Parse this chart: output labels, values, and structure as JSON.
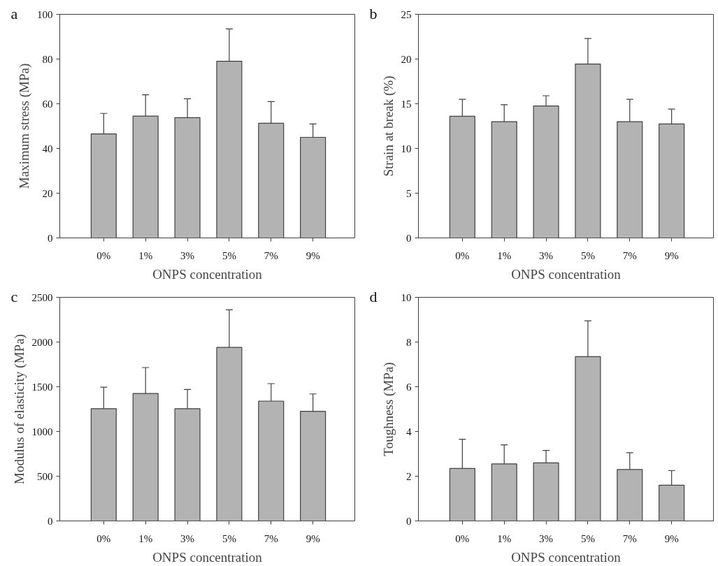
{
  "chart_data": [
    {
      "type": "bar",
      "annotations": [
        "a"
      ],
      "xlabel": "ONPS concentration",
      "ylabel": "Maximum stress (MPa)",
      "categories": [
        "0%",
        "1%",
        "3%",
        "5%",
        "7%",
        "9%"
      ],
      "values": [
        46.5,
        54.5,
        53.8,
        79,
        51.3,
        45
      ],
      "color": "#b3b3b3",
      "errors": [
        [
          46.5,
          55.7
        ],
        [
          54.5,
          64
        ],
        [
          53.8,
          62.2
        ],
        [
          79,
          93.5
        ],
        [
          51.3,
          61
        ],
        [
          45,
          51
        ]
      ],
      "ylim": [
        0,
        100
      ],
      "yticks": [
        0,
        20,
        40,
        60,
        80,
        100
      ],
      "grid": false
    },
    {
      "type": "bar",
      "annotations": [
        "b"
      ],
      "xlabel": "ONPS concentration",
      "ylabel": "Strain at break (%)",
      "categories": [
        "0%",
        "1%",
        "3%",
        "5%",
        "7%",
        "9%"
      ],
      "values": [
        13.6,
        13.0,
        14.75,
        19.45,
        13.0,
        12.75
      ],
      "color": "#b3b3b3",
      "errors": [
        [
          13.6,
          15.5
        ],
        [
          13.0,
          14.9
        ],
        [
          14.75,
          15.9
        ],
        [
          19.45,
          22.3
        ],
        [
          13.0,
          15.5
        ],
        [
          12.75,
          14.4
        ]
      ],
      "ylim": [
        0,
        25
      ],
      "yticks": [
        0,
        5,
        10,
        15,
        20,
        25
      ],
      "grid": false
    },
    {
      "type": "bar",
      "annotations": [
        "c"
      ],
      "xlabel": "ONPS concentration",
      "ylabel": "Modulus of elasticity (MPa)",
      "categories": [
        "0%",
        "1%",
        "3%",
        "5%",
        "7%",
        "9%"
      ],
      "values": [
        1255,
        1425,
        1255,
        1940,
        1340,
        1225
      ],
      "color": "#b3b3b3",
      "errors": [
        [
          1255,
          1495
        ],
        [
          1425,
          1715
        ],
        [
          1255,
          1470
        ],
        [
          1940,
          2360
        ],
        [
          1340,
          1535
        ],
        [
          1225,
          1420
        ]
      ],
      "ylim": [
        0,
        2500
      ],
      "yticks": [
        0,
        500,
        1000,
        1500,
        2000,
        2500
      ],
      "grid": false
    },
    {
      "type": "bar",
      "annotations": [
        "d"
      ],
      "xlabel": "ONPS concentration",
      "ylabel": "Toughness (MPa)",
      "categories": [
        "0%",
        "1%",
        "3%",
        "5%",
        "7%",
        "9%"
      ],
      "values": [
        2.35,
        2.55,
        2.6,
        7.35,
        2.3,
        1.6
      ],
      "color": "#b3b3b3",
      "errors": [
        [
          2.35,
          3.65
        ],
        [
          2.55,
          3.4
        ],
        [
          2.6,
          3.15
        ],
        [
          7.35,
          8.95
        ],
        [
          2.3,
          3.05
        ],
        [
          1.6,
          2.25
        ]
      ],
      "ylim": [
        0,
        10
      ],
      "yticks": [
        0,
        2,
        4,
        6,
        8,
        10
      ],
      "grid": false
    }
  ]
}
